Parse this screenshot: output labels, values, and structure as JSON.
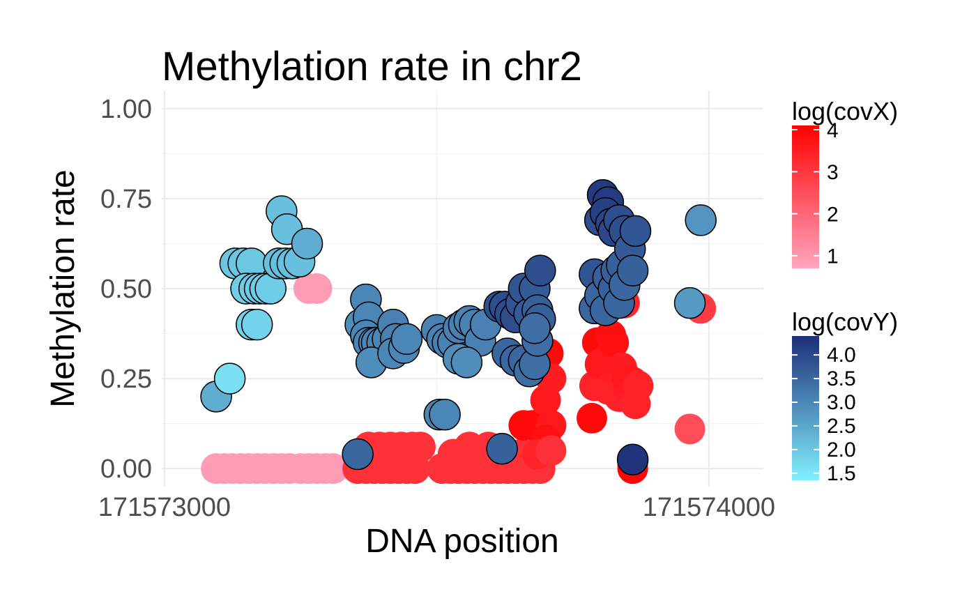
{
  "chart_data": {
    "type": "scatter",
    "title": "Methylation rate in chr2",
    "xlabel": "DNA position",
    "ylabel": "Methylation rate",
    "xlim": [
      171572995,
      171574100
    ],
    "ylim": [
      -0.05,
      1.05
    ],
    "x_ticks": [
      171573000,
      171574000
    ],
    "x_tick_labels": [
      "171573000",
      "171574000"
    ],
    "y_ticks": [
      0,
      0.25,
      0.5,
      0.75,
      1
    ],
    "y_tick_labels": [
      "0.00",
      "0.25",
      "0.50",
      "0.75",
      "1.00"
    ],
    "grid": true,
    "series": [
      {
        "name": "log(covX)",
        "color_scale": {
          "low": "#ffa6c0",
          "high": "#ff0000",
          "min": 0.7,
          "max": 4.1
        },
        "legend_ticks": [
          1,
          2,
          3,
          4
        ],
        "points": [
          {
            "x": 171573095,
            "y": 0.0,
            "c": 0.9
          },
          {
            "x": 171573110,
            "y": 0.0,
            "c": 0.9
          },
          {
            "x": 171573125,
            "y": 0.0,
            "c": 0.9
          },
          {
            "x": 171573140,
            "y": 0.0,
            "c": 0.9
          },
          {
            "x": 171573155,
            "y": 0.0,
            "c": 0.9
          },
          {
            "x": 171573170,
            "y": 0.0,
            "c": 0.9
          },
          {
            "x": 171573185,
            "y": 0.0,
            "c": 0.9
          },
          {
            "x": 171573200,
            "y": 0.0,
            "c": 0.9
          },
          {
            "x": 171573215,
            "y": 0.0,
            "c": 0.9
          },
          {
            "x": 171573230,
            "y": 0.0,
            "c": 0.9
          },
          {
            "x": 171573250,
            "y": 0.0,
            "c": 0.9
          },
          {
            "x": 171573265,
            "y": 0.0,
            "c": 0.9
          },
          {
            "x": 171573280,
            "y": 0.0,
            "c": 0.9
          },
          {
            "x": 171573295,
            "y": 0.0,
            "c": 0.9
          },
          {
            "x": 171573310,
            "y": 0.0,
            "c": 0.9
          },
          {
            "x": 171573150,
            "y": 0.5,
            "c": 0.9
          },
          {
            "x": 171573165,
            "y": 0.5,
            "c": 0.9
          },
          {
            "x": 171573265,
            "y": 0.5,
            "c": 0.9
          },
          {
            "x": 171573280,
            "y": 0.5,
            "c": 0.9
          },
          {
            "x": 171573355,
            "y": 0.0,
            "c": 3.1
          },
          {
            "x": 171573370,
            "y": 0.0,
            "c": 3.1
          },
          {
            "x": 171573385,
            "y": 0.0,
            "c": 3.1
          },
          {
            "x": 171573400,
            "y": 0.0,
            "c": 3.1
          },
          {
            "x": 171573415,
            "y": 0.0,
            "c": 3.1
          },
          {
            "x": 171573430,
            "y": 0.0,
            "c": 3.1
          },
          {
            "x": 171573445,
            "y": 0.0,
            "c": 3.1
          },
          {
            "x": 171573460,
            "y": 0.0,
            "c": 3.1
          },
          {
            "x": 171573375,
            "y": 0.06,
            "c": 3.1
          },
          {
            "x": 171573395,
            "y": 0.06,
            "c": 3.1
          },
          {
            "x": 171573415,
            "y": 0.06,
            "c": 3.1
          },
          {
            "x": 171573435,
            "y": 0.06,
            "c": 3.1
          },
          {
            "x": 171573455,
            "y": 0.06,
            "c": 3.1
          },
          {
            "x": 171573470,
            "y": 0.06,
            "c": 3.1
          },
          {
            "x": 171573390,
            "y": 0.02,
            "c": 3.1
          },
          {
            "x": 171573420,
            "y": 0.02,
            "c": 3.1
          },
          {
            "x": 171573450,
            "y": 0.02,
            "c": 3.1
          },
          {
            "x": 171573510,
            "y": 0.0,
            "c": 3.1
          },
          {
            "x": 171573525,
            "y": 0.0,
            "c": 3.1
          },
          {
            "x": 171573540,
            "y": 0.0,
            "c": 3.1
          },
          {
            "x": 171573555,
            "y": 0.0,
            "c": 3.1
          },
          {
            "x": 171573570,
            "y": 0.0,
            "c": 3.1
          },
          {
            "x": 171573585,
            "y": 0.0,
            "c": 3.1
          },
          {
            "x": 171573600,
            "y": 0.0,
            "c": 3.1
          },
          {
            "x": 171573615,
            "y": 0.0,
            "c": 3.1
          },
          {
            "x": 171573630,
            "y": 0.0,
            "c": 3.1
          },
          {
            "x": 171573645,
            "y": 0.0,
            "c": 3.1
          },
          {
            "x": 171573660,
            "y": 0.0,
            "c": 3.1
          },
          {
            "x": 171573675,
            "y": 0.0,
            "c": 3.1
          },
          {
            "x": 171573690,
            "y": 0.0,
            "c": 3.1
          },
          {
            "x": 171573530,
            "y": 0.04,
            "c": 3.1
          },
          {
            "x": 171573560,
            "y": 0.06,
            "c": 3.1
          },
          {
            "x": 171573580,
            "y": 0.04,
            "c": 3.1
          },
          {
            "x": 171573595,
            "y": 0.06,
            "c": 3.1
          },
          {
            "x": 171573610,
            "y": 0.02,
            "c": 3.1
          },
          {
            "x": 171573620,
            "y": 0.05,
            "c": 3.1
          },
          {
            "x": 171573640,
            "y": 0.03,
            "c": 3.1
          },
          {
            "x": 171573655,
            "y": 0.04,
            "c": 3.1
          },
          {
            "x": 171573670,
            "y": 0.03,
            "c": 3.1
          },
          {
            "x": 171573680,
            "y": 0.02,
            "c": 3.1
          },
          {
            "x": 171573690,
            "y": 0.05,
            "c": 3.1
          },
          {
            "x": 171573660,
            "y": 0.12,
            "c": 3.9
          },
          {
            "x": 171573675,
            "y": 0.12,
            "c": 3.9
          },
          {
            "x": 171573690,
            "y": 0.12,
            "c": 3.9
          },
          {
            "x": 171573705,
            "y": 0.12,
            "c": 3.9
          },
          {
            "x": 171573700,
            "y": 0.19,
            "c": 3.6
          },
          {
            "x": 171573710,
            "y": 0.12,
            "c": 3.6
          },
          {
            "x": 171573700,
            "y": 0.08,
            "c": 3.8
          },
          {
            "x": 171573685,
            "y": 0.04,
            "c": 3.4
          },
          {
            "x": 171573710,
            "y": 0.05,
            "c": 3.1
          },
          {
            "x": 171573705,
            "y": 0.32,
            "c": 3.9
          },
          {
            "x": 171573710,
            "y": 0.25,
            "c": 3.5
          },
          {
            "x": 171573785,
            "y": 0.14,
            "c": 3.9
          },
          {
            "x": 171573790,
            "y": 0.23,
            "c": 3.4
          },
          {
            "x": 171573795,
            "y": 0.35,
            "c": 3.9
          },
          {
            "x": 171573800,
            "y": 0.29,
            "c": 3.6
          },
          {
            "x": 171573810,
            "y": 0.3,
            "c": 3.6
          },
          {
            "x": 171573815,
            "y": 0.22,
            "c": 3.4
          },
          {
            "x": 171573820,
            "y": 0.37,
            "c": 3.8
          },
          {
            "x": 171573825,
            "y": 0.35,
            "c": 3.8
          },
          {
            "x": 171573830,
            "y": 0.27,
            "c": 3.5
          },
          {
            "x": 171573835,
            "y": 0.2,
            "c": 3.4
          },
          {
            "x": 171573840,
            "y": 0.28,
            "c": 3.5
          },
          {
            "x": 171573845,
            "y": 0.46,
            "c": 3.3
          },
          {
            "x": 171573850,
            "y": 0.25,
            "c": 3.6
          },
          {
            "x": 171573855,
            "y": 0.22,
            "c": 3.5
          },
          {
            "x": 171573860,
            "y": 0.24,
            "c": 3.6
          },
          {
            "x": 171573865,
            "y": 0.18,
            "c": 3.4
          },
          {
            "x": 171573870,
            "y": 0.23,
            "c": 3.4
          },
          {
            "x": 171573860,
            "y": 0.0,
            "c": 4.0
          },
          {
            "x": 171573860,
            "y": 0.01,
            "c": 4.0
          },
          {
            "x": 171573965,
            "y": 0.11,
            "c": 2.5
          },
          {
            "x": 171573985,
            "y": 0.445,
            "c": 2.9
          }
        ]
      },
      {
        "name": "log(covY)",
        "color_scale": {
          "low": "#82f0ff",
          "high": "#1d2e78",
          "min": 1.35,
          "max": 4.4
        },
        "legend_ticks": [
          1.5,
          2.0,
          2.5,
          3.0,
          3.5,
          4.0
        ],
        "legend_tick_labels": [
          "1.5",
          "2.0",
          "2.5",
          "3.0",
          "3.5",
          "4.0"
        ],
        "points": [
          {
            "x": 171573095,
            "y": 0.2,
            "c": 2.4
          },
          {
            "x": 171573120,
            "y": 0.25,
            "c": 1.6
          },
          {
            "x": 171573130,
            "y": 0.57,
            "c": 2.0
          },
          {
            "x": 171573145,
            "y": 0.57,
            "c": 2.0
          },
          {
            "x": 171573160,
            "y": 0.57,
            "c": 2.0
          },
          {
            "x": 171573150,
            "y": 0.5,
            "c": 1.9
          },
          {
            "x": 171573165,
            "y": 0.5,
            "c": 1.9
          },
          {
            "x": 171573175,
            "y": 0.5,
            "c": 1.9
          },
          {
            "x": 171573185,
            "y": 0.5,
            "c": 1.9
          },
          {
            "x": 171573195,
            "y": 0.5,
            "c": 1.9
          },
          {
            "x": 171573160,
            "y": 0.4,
            "c": 1.8
          },
          {
            "x": 171573170,
            "y": 0.4,
            "c": 1.8
          },
          {
            "x": 171573215,
            "y": 0.715,
            "c": 2.1
          },
          {
            "x": 171573225,
            "y": 0.665,
            "c": 2.1
          },
          {
            "x": 171573210,
            "y": 0.57,
            "c": 2.1
          },
          {
            "x": 171573222,
            "y": 0.57,
            "c": 2.1
          },
          {
            "x": 171573235,
            "y": 0.57,
            "c": 2.1
          },
          {
            "x": 171573248,
            "y": 0.575,
            "c": 2.1
          },
          {
            "x": 171573262,
            "y": 0.625,
            "c": 2.4
          },
          {
            "x": 171573360,
            "y": 0.4,
            "c": 2.9
          },
          {
            "x": 171573370,
            "y": 0.47,
            "c": 3.0
          },
          {
            "x": 171573375,
            "y": 0.42,
            "c": 3.0
          },
          {
            "x": 171573370,
            "y": 0.37,
            "c": 3.0
          },
          {
            "x": 171573375,
            "y": 0.35,
            "c": 3.0
          },
          {
            "x": 171573385,
            "y": 0.35,
            "c": 3.0
          },
          {
            "x": 171573390,
            "y": 0.35,
            "c": 3.0
          },
          {
            "x": 171573400,
            "y": 0.35,
            "c": 3.0
          },
          {
            "x": 171573410,
            "y": 0.36,
            "c": 3.0
          },
          {
            "x": 171573420,
            "y": 0.4,
            "c": 3.1
          },
          {
            "x": 171573425,
            "y": 0.36,
            "c": 3.1
          },
          {
            "x": 171573380,
            "y": 0.295,
            "c": 2.9
          },
          {
            "x": 171573420,
            "y": 0.32,
            "c": 3.0
          },
          {
            "x": 171573440,
            "y": 0.335,
            "c": 3.0
          },
          {
            "x": 171573445,
            "y": 0.36,
            "c": 3.0
          },
          {
            "x": 171573355,
            "y": 0.04,
            "c": 3.5
          },
          {
            "x": 171573500,
            "y": 0.385,
            "c": 3.1
          },
          {
            "x": 171573510,
            "y": 0.36,
            "c": 3.1
          },
          {
            "x": 171573520,
            "y": 0.35,
            "c": 3.1
          },
          {
            "x": 171573530,
            "y": 0.35,
            "c": 3.1
          },
          {
            "x": 171573540,
            "y": 0.39,
            "c": 3.1
          },
          {
            "x": 171573550,
            "y": 0.4,
            "c": 3.1
          },
          {
            "x": 171573560,
            "y": 0.41,
            "c": 3.1
          },
          {
            "x": 171573570,
            "y": 0.4,
            "c": 3.1
          },
          {
            "x": 171573580,
            "y": 0.355,
            "c": 3.1
          },
          {
            "x": 171573590,
            "y": 0.4,
            "c": 3.1
          },
          {
            "x": 171573540,
            "y": 0.305,
            "c": 2.9
          },
          {
            "x": 171573555,
            "y": 0.295,
            "c": 2.9
          },
          {
            "x": 171573505,
            "y": 0.15,
            "c": 3.0
          },
          {
            "x": 171573515,
            "y": 0.15,
            "c": 3.0
          },
          {
            "x": 171573615,
            "y": 0.45,
            "c": 3.9
          },
          {
            "x": 171573625,
            "y": 0.45,
            "c": 3.9
          },
          {
            "x": 171573635,
            "y": 0.43,
            "c": 3.9
          },
          {
            "x": 171573645,
            "y": 0.42,
            "c": 3.9
          },
          {
            "x": 171573655,
            "y": 0.46,
            "c": 3.8
          },
          {
            "x": 171573660,
            "y": 0.5,
            "c": 3.8
          },
          {
            "x": 171573670,
            "y": 0.43,
            "c": 3.7
          },
          {
            "x": 171573680,
            "y": 0.5,
            "c": 3.7
          },
          {
            "x": 171573690,
            "y": 0.55,
            "c": 3.9
          },
          {
            "x": 171573685,
            "y": 0.44,
            "c": 3.6
          },
          {
            "x": 171573690,
            "y": 0.415,
            "c": 3.6
          },
          {
            "x": 171573630,
            "y": 0.32,
            "c": 3.5
          },
          {
            "x": 171573645,
            "y": 0.3,
            "c": 3.5
          },
          {
            "x": 171573660,
            "y": 0.3,
            "c": 3.5
          },
          {
            "x": 171573670,
            "y": 0.27,
            "c": 3.4
          },
          {
            "x": 171573680,
            "y": 0.29,
            "c": 3.4
          },
          {
            "x": 171573685,
            "y": 0.355,
            "c": 3.4
          },
          {
            "x": 171573680,
            "y": 0.39,
            "c": 3.4
          },
          {
            "x": 171573620,
            "y": 0.055,
            "c": 3.6
          },
          {
            "x": 171573790,
            "y": 0.54,
            "c": 3.8
          },
          {
            "x": 171573800,
            "y": 0.69,
            "c": 3.9
          },
          {
            "x": 171573805,
            "y": 0.76,
            "c": 4.2
          },
          {
            "x": 171573815,
            "y": 0.74,
            "c": 4.2
          },
          {
            "x": 171573810,
            "y": 0.71,
            "c": 4.1
          },
          {
            "x": 171573820,
            "y": 0.68,
            "c": 4.0
          },
          {
            "x": 171573825,
            "y": 0.66,
            "c": 4.0
          },
          {
            "x": 171573835,
            "y": 0.69,
            "c": 3.9
          },
          {
            "x": 171573845,
            "y": 0.66,
            "c": 3.9
          },
          {
            "x": 171573790,
            "y": 0.445,
            "c": 3.5
          },
          {
            "x": 171573800,
            "y": 0.48,
            "c": 3.5
          },
          {
            "x": 171573810,
            "y": 0.44,
            "c": 3.5
          },
          {
            "x": 171573815,
            "y": 0.53,
            "c": 3.6
          },
          {
            "x": 171573825,
            "y": 0.5,
            "c": 3.6
          },
          {
            "x": 171573830,
            "y": 0.55,
            "c": 3.6
          },
          {
            "x": 171573835,
            "y": 0.46,
            "c": 3.5
          },
          {
            "x": 171573840,
            "y": 0.565,
            "c": 3.6
          },
          {
            "x": 171573845,
            "y": 0.51,
            "c": 3.5
          },
          {
            "x": 171573855,
            "y": 0.61,
            "c": 3.7
          },
          {
            "x": 171573860,
            "y": 0.55,
            "c": 3.6
          },
          {
            "x": 171573865,
            "y": 0.66,
            "c": 3.8
          },
          {
            "x": 171573860,
            "y": 0.025,
            "c": 4.3
          },
          {
            "x": 171573965,
            "y": 0.46,
            "c": 2.7
          },
          {
            "x": 171573985,
            "y": 0.69,
            "c": 2.8
          }
        ]
      }
    ]
  }
}
